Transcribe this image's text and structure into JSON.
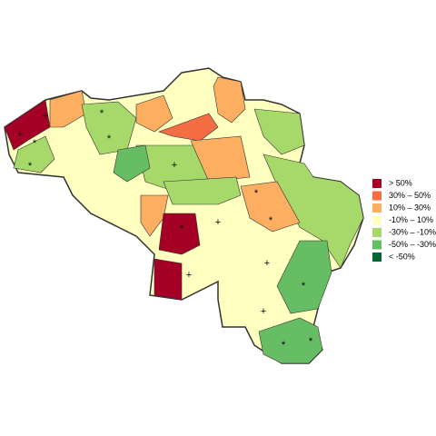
{
  "legend": [
    {
      "label": "> 50%",
      "color": "#a50026"
    },
    {
      "label": "30%  –  50%",
      "color": "#f46d43"
    },
    {
      "label": "10%  –  30%",
      "color": "#fdae61"
    },
    {
      "label": "-10%  –  10%",
      "color": "#ffffbf"
    },
    {
      "label": "-30%  –  -10%",
      "color": "#a6d96a"
    },
    {
      "label": "-50%  –  -30%",
      "color": "#66bd63"
    },
    {
      "label": "< -50%",
      "color": "#006837"
    }
  ],
  "symbols": [
    "+",
    "*"
  ]
}
